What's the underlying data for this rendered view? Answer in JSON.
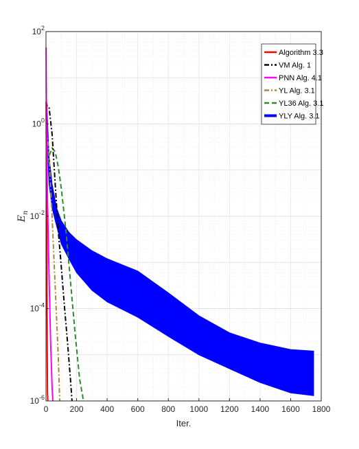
{
  "chart_data": {
    "type": "line",
    "title": "",
    "xlabel": "Iter.",
    "ylabel": {
      "base": "E",
      "sub": "n"
    },
    "xlim": [
      0,
      1800
    ],
    "ylim": [
      1e-06,
      100
    ],
    "yscale": "log",
    "grid": true,
    "legend_position": "top-right",
    "x_ticks": [
      "0",
      "200",
      "400",
      "600",
      "800",
      "1000",
      "1200",
      "1400",
      "1600",
      "1800"
    ],
    "y_ticks": [
      {
        "base": "10",
        "exp": "-6"
      },
      {
        "base": "10",
        "exp": "-4"
      },
      {
        "base": "10",
        "exp": "-2"
      },
      {
        "base": "10",
        "exp": "0"
      },
      {
        "base": "10",
        "exp": "2"
      }
    ],
    "series": [
      {
        "name": "Algorithm 3.3",
        "color": "#ff0000",
        "style": "solid",
        "x": [
          1,
          2,
          4,
          6,
          8,
          10,
          12
        ],
        "y": [
          3,
          0.8,
          0.02,
          0.0004,
          1e-05,
          1.5e-06,
          1e-06
        ]
      },
      {
        "name": "VM Alg. 1",
        "color": "#000000",
        "style": "dashdot",
        "x": [
          1,
          8,
          20,
          40,
          60,
          80,
          100,
          120,
          140,
          160,
          170
        ],
        "y": [
          3,
          2.4,
          2.3,
          0.6,
          0.05,
          0.005,
          0.0008,
          0.00012,
          2e-05,
          3e-06,
          1e-06
        ]
      },
      {
        "name": "PNN Alg. 4.1",
        "color": "#ff00ff",
        "style": "solid",
        "x": [
          1,
          2,
          5,
          10,
          20,
          30,
          40,
          45
        ],
        "y": [
          45,
          5,
          0.5,
          0.02,
          0.0005,
          2e-05,
          2e-06,
          1e-06
        ]
      },
      {
        "name": "YL Alg. 3.1",
        "color": "#a68a3c",
        "style": "dashdot",
        "x": [
          1,
          10,
          20,
          40,
          60,
          80,
          90
        ],
        "y": [
          0.7,
          0.5,
          0.2,
          0.01,
          0.0003,
          1e-05,
          1e-06
        ]
      },
      {
        "name": "YL36 Alg. 3.1",
        "color": "#2e8b2e",
        "style": "dashed",
        "x": [
          1,
          20,
          40,
          60,
          80,
          100,
          130,
          160,
          190,
          220,
          245
        ],
        "y": [
          0.1,
          0.2,
          0.3,
          0.25,
          0.12,
          0.04,
          0.005,
          0.0004,
          3e-05,
          3e-06,
          1e-06
        ]
      },
      {
        "name": "YLY Alg. 3.1",
        "color": "#0000ff",
        "style": "band",
        "x": [
          1,
          5,
          10,
          20,
          40,
          70,
          100,
          150,
          200,
          300,
          400,
          600,
          800,
          1000,
          1200,
          1400,
          1600,
          1750
        ],
        "y_upper": [
          15,
          3,
          1.2,
          0.2,
          0.05,
          0.015,
          0.008,
          0.0045,
          0.0031,
          0.0018,
          0.0012,
          0.00065,
          0.00022,
          7e-05,
          3e-05,
          1.8e-05,
          1.3e-05,
          1.2e-05
        ],
        "y_lower": [
          15,
          2,
          0.3,
          0.05,
          0.015,
          0.006,
          0.0025,
          0.0012,
          0.0006,
          0.00025,
          0.00014,
          6.5e-05,
          2.5e-05,
          1e-05,
          5e-06,
          2.5e-06,
          1.5e-06,
          1.3e-06
        ]
      }
    ]
  }
}
